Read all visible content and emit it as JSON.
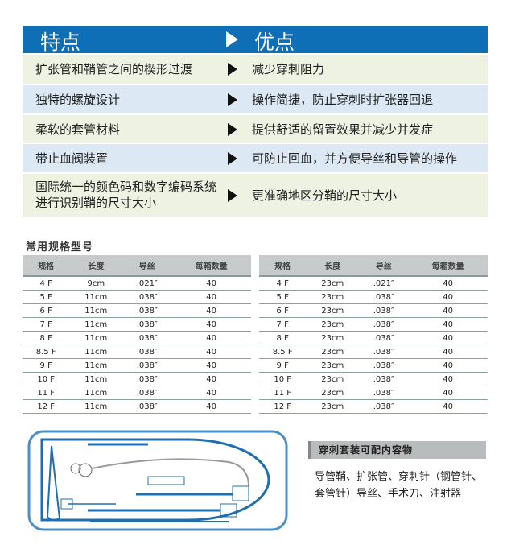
{
  "features": {
    "header_left": "特点",
    "header_right": "优点",
    "rows": [
      {
        "feature": "扩张管和鞘管之间的楔形过渡",
        "advantage": "减少穿刺阻力"
      },
      {
        "feature": "独特的螺旋设计",
        "advantage": "操作简捷，防止穿刺时扩张器回退"
      },
      {
        "feature": "柔软的套管材料",
        "advantage": "提供舒适的留置效果并减少并发症"
      },
      {
        "feature": "带止血阀装置",
        "advantage": "可防止回血，并方便导丝和导管的操作"
      },
      {
        "feature": "国际统一的颜色码和数字编码系统进行识别鞘的尺寸大小",
        "advantage": "更准确地区分鞘的尺寸大小"
      }
    ]
  },
  "specs": {
    "title": "常用规格型号",
    "columns": [
      "规格",
      "长度",
      "导丝",
      "每箱数量"
    ],
    "left": [
      [
        "4 F",
        "9cm",
        ".021″",
        "40"
      ],
      [
        "5 F",
        "11cm",
        ".038″",
        "40"
      ],
      [
        "6 F",
        "11cm",
        ".038″",
        "40"
      ],
      [
        "7 F",
        "11cm",
        ".038″",
        "40"
      ],
      [
        "8 F",
        "11cm",
        ".038″",
        "40"
      ],
      [
        "8.5 F",
        "11cm",
        ".038″",
        "40"
      ],
      [
        "9 F",
        "11cm",
        ".038″",
        "40"
      ],
      [
        "10 F",
        "11cm",
        ".038″",
        "40"
      ],
      [
        "11 F",
        "11cm",
        ".038″",
        "40"
      ],
      [
        "12 F",
        "11cm",
        ".038″",
        "40"
      ]
    ],
    "right": [
      [
        "4 F",
        "23cm",
        ".021″",
        "40"
      ],
      [
        "5 F",
        "23cm",
        ".038″",
        "40"
      ],
      [
        "6 F",
        "23cm",
        ".038″",
        "40"
      ],
      [
        "7 F",
        "23cm",
        ".038″",
        "40"
      ],
      [
        "8 F",
        "23cm",
        ".038″",
        "40"
      ],
      [
        "8.5 F",
        "23cm",
        ".038″",
        "40"
      ],
      [
        "9 F",
        "23cm",
        ".038″",
        "40"
      ],
      [
        "10 F",
        "23cm",
        ".038″",
        "40"
      ],
      [
        "11 F",
        "23cm",
        ".038″",
        "40"
      ],
      [
        "12 F",
        "23cm",
        ".038″",
        "40"
      ]
    ]
  },
  "kit": {
    "title": "穿刺套装可配内容物",
    "contents": "导管鞘、扩张管、穿刺针（钢管针、套管针）导丝、手术刀、注射器"
  },
  "colors": {
    "header_blue": "#0f6fb6",
    "row_green": "#eef2e3",
    "row_blue": "#dce9f5",
    "table_header": "#c8cbcc"
  }
}
